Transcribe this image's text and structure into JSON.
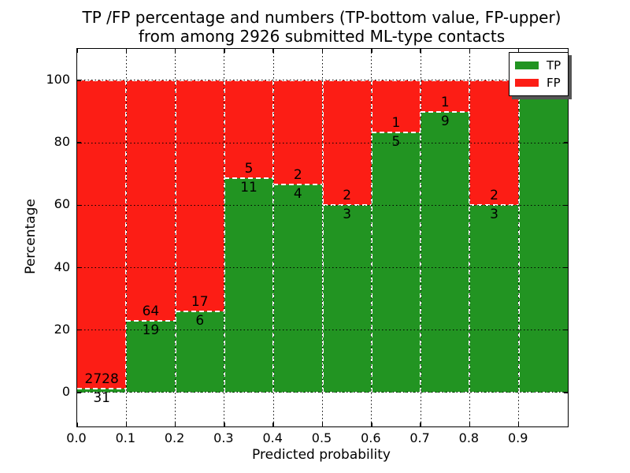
{
  "title": {
    "line1": "TP /FP percentage and numbers (TP-bottom value, FP-upper)",
    "line2": "from among 2926 submitted ML-type contacts"
  },
  "axes": {
    "xlabel": "Predicted probability",
    "ylabel": "Percentage",
    "xlim": [
      0.0,
      1.0
    ],
    "ylim": [
      -10.9,
      110.1
    ],
    "x_tick_labels": [
      "0.0",
      "0.1",
      "0.2",
      "0.3",
      "0.4",
      "0.5",
      "0.6",
      "0.7",
      "0.8",
      "0.9"
    ],
    "x_tick_values": [
      0.0,
      0.1,
      0.2,
      0.3,
      0.4,
      0.5,
      0.6,
      0.7,
      0.8,
      0.9
    ],
    "y_tick_labels": [
      "0",
      "20",
      "40",
      "60",
      "80",
      "100"
    ],
    "y_tick_values": [
      0,
      20,
      40,
      60,
      80,
      100
    ],
    "x_grid_values": [
      0.1,
      0.2,
      0.3,
      0.4,
      0.5,
      0.6,
      0.7,
      0.8,
      0.9
    ],
    "y_grid_values": [
      0,
      20,
      40,
      60,
      80,
      100
    ],
    "grid": "dotted-black-above-bars"
  },
  "colors": {
    "tp": "#229422",
    "fp": "#fc1d15",
    "bar_edge": "#ffffff"
  },
  "legend": {
    "position": "upper-right",
    "entries": [
      {
        "label": "TP",
        "color": "#229422"
      },
      {
        "label": "FP",
        "color": "#fc1d15"
      }
    ]
  },
  "chart_data": {
    "type": "bar",
    "stacked": true,
    "normalized_to_percent": 100,
    "total_contacts": 2926,
    "bin_width": 0.1,
    "series_names": [
      "TP",
      "FP"
    ],
    "bins": [
      {
        "x0": 0.0,
        "x1": 0.1,
        "tp": 31,
        "fp": 2728,
        "tp_label": "31",
        "fp_label": "2728"
      },
      {
        "x0": 0.1,
        "x1": 0.2,
        "tp": 19,
        "fp": 64,
        "tp_label": "19",
        "fp_label": "64"
      },
      {
        "x0": 0.2,
        "x1": 0.3,
        "tp": 6,
        "fp": 17,
        "tp_label": "6",
        "fp_label": "17"
      },
      {
        "x0": 0.3,
        "x1": 0.4,
        "tp": 11,
        "fp": 5,
        "tp_label": "11",
        "fp_label": "5"
      },
      {
        "x0": 0.4,
        "x1": 0.5,
        "tp": 4,
        "fp": 2,
        "tp_label": "4",
        "fp_label": "2"
      },
      {
        "x0": 0.5,
        "x1": 0.6,
        "tp": 3,
        "fp": 2,
        "tp_label": "3",
        "fp_label": "2"
      },
      {
        "x0": 0.6,
        "x1": 0.7,
        "tp": 5,
        "fp": 1,
        "tp_label": "5",
        "fp_label": "1"
      },
      {
        "x0": 0.7,
        "x1": 0.8,
        "tp": 9,
        "fp": 1,
        "tp_label": "9",
        "fp_label": "1"
      },
      {
        "x0": 0.8,
        "x1": 0.9,
        "tp": 3,
        "fp": 2,
        "tp_label": "3",
        "fp_label": "2"
      },
      {
        "x0": 0.9,
        "x1": 1.0,
        "tp": 13,
        "fp": 0,
        "tp_label": "13",
        "fp_label": ""
      }
    ]
  }
}
